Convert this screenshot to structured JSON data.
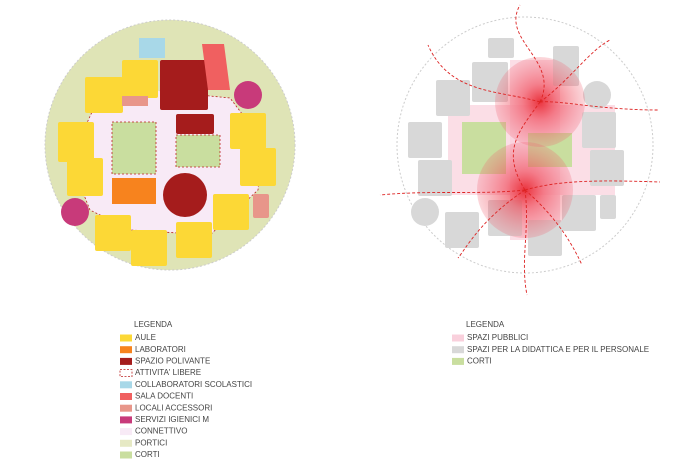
{
  "left_legend": {
    "title": "LEGENDA",
    "items": [
      {
        "label": "AULE",
        "color": "#fcd836"
      },
      {
        "label": "LABORATORI",
        "color": "#f7831e"
      },
      {
        "label": "SPAZIO POLIVANTE",
        "color": "#a51c1c"
      },
      {
        "label": "ATTIVITA' LIBERE",
        "color": "#ffffff",
        "outline": "dashed"
      },
      {
        "label": "COLLABORATORI SCOLASTICI",
        "color": "#a8d8e8"
      },
      {
        "label": "SALA DOCENTI",
        "color": "#f06060"
      },
      {
        "label": "LOCALI ACCESSORI",
        "color": "#e8968a"
      },
      {
        "label": "SERVIZI IGIENICI M",
        "color": "#c83a7a"
      },
      {
        "label": "CONNETTIVO",
        "color": "#f8eaf6"
      },
      {
        "label": "PORTICI",
        "color": "#e6e9c4"
      },
      {
        "label": "CORTI",
        "color": "#c9de9f"
      }
    ]
  },
  "right_legend": {
    "title": "LEGENDA",
    "items": [
      {
        "label": "SPAZI PUBBLICI",
        "color": "#f9d0dc"
      },
      {
        "label": "SPAZI PER LA DIDATTICA E PER IL PERSONALE",
        "color": "#d8d8d8"
      },
      {
        "label": "CORTI",
        "color": "#c9de9f"
      }
    ]
  }
}
